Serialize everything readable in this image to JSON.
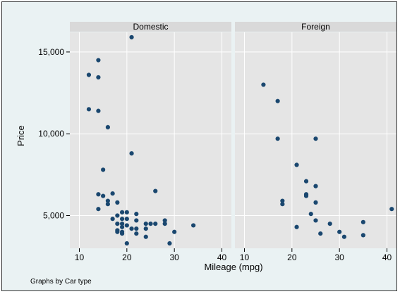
{
  "chart_data": {
    "type": "scatter",
    "xlabel": "Mileage (mpg)",
    "ylabel": "Price",
    "note": "Graphs by Car type",
    "xlim": [
      8,
      42
    ],
    "ylim": [
      3000,
      16200
    ],
    "x_ticks": [
      10,
      20,
      30,
      40
    ],
    "y_ticks": [
      5000,
      10000,
      15000
    ],
    "y_tick_labels": [
      "5,000",
      "10,000",
      "15,000"
    ],
    "grid": true,
    "colors": {
      "background": "#eaf2f3",
      "panel": "#e5e5e5",
      "strip": "#d9d9d9",
      "grid": "#ffffff",
      "marker": "#1a476f"
    },
    "panels": [
      {
        "title": "Domestic",
        "points": [
          [
            12,
            13600
          ],
          [
            12,
            11500
          ],
          [
            14,
            14500
          ],
          [
            14,
            13450
          ],
          [
            14,
            11400
          ],
          [
            14,
            6300
          ],
          [
            14,
            5400
          ],
          [
            15,
            7800
          ],
          [
            15,
            6200
          ],
          [
            16,
            10400
          ],
          [
            16,
            5900
          ],
          [
            16,
            5700
          ],
          [
            17,
            6350
          ],
          [
            17,
            4800
          ],
          [
            18,
            5800
          ],
          [
            18,
            5000
          ],
          [
            18,
            4500
          ],
          [
            18,
            4100
          ],
          [
            18,
            4000
          ],
          [
            19,
            5200
          ],
          [
            19,
            4800
          ],
          [
            19,
            4500
          ],
          [
            19,
            4300
          ],
          [
            19,
            4000
          ],
          [
            19,
            3900
          ],
          [
            20,
            5200
          ],
          [
            20,
            4800
          ],
          [
            20,
            4400
          ],
          [
            20,
            3300
          ],
          [
            21,
            15900
          ],
          [
            21,
            8800
          ],
          [
            21,
            4200
          ],
          [
            22,
            5100
          ],
          [
            22,
            4700
          ],
          [
            22,
            4200
          ],
          [
            22,
            3900
          ],
          [
            24,
            4500
          ],
          [
            24,
            4200
          ],
          [
            24,
            3700
          ],
          [
            25,
            4500
          ],
          [
            26,
            6500
          ],
          [
            26,
            4500
          ],
          [
            28,
            4700
          ],
          [
            28,
            4500
          ],
          [
            29,
            3300
          ],
          [
            30,
            4000
          ],
          [
            34,
            4400
          ]
        ]
      },
      {
        "title": "Foreign",
        "points": [
          [
            14,
            13000
          ],
          [
            17,
            12000
          ],
          [
            17,
            9700
          ],
          [
            18,
            5900
          ],
          [
            18,
            5700
          ],
          [
            21,
            8100
          ],
          [
            21,
            4300
          ],
          [
            23,
            7100
          ],
          [
            23,
            6300
          ],
          [
            23,
            6200
          ],
          [
            24,
            5100
          ],
          [
            25,
            9700
          ],
          [
            25,
            6800
          ],
          [
            25,
            5800
          ],
          [
            25,
            4700
          ],
          [
            26,
            3900
          ],
          [
            28,
            4500
          ],
          [
            30,
            4000
          ],
          [
            31,
            3700
          ],
          [
            35,
            4600
          ],
          [
            35,
            3800
          ],
          [
            41,
            5400
          ]
        ]
      }
    ]
  }
}
